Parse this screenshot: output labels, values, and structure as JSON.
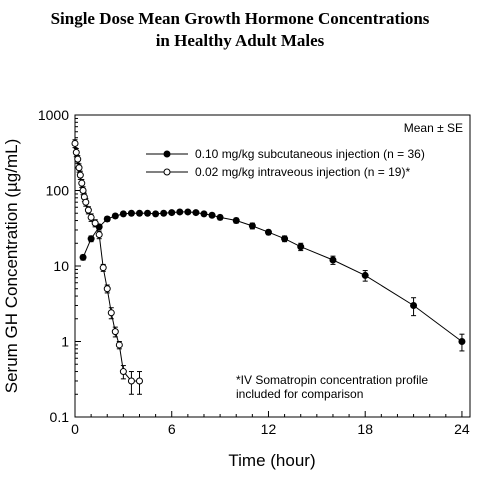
{
  "chart_data": {
    "type": "line",
    "title_line1": "Single Dose Mean Growth Hormone Concentrations",
    "title_line2": "in Healthy Adult Males",
    "xlabel": "Time (hour)",
    "ylabel": "Serum GH Concentration (µg/mL)",
    "xlim": [
      0,
      24.5
    ],
    "ylim": [
      0.1,
      1000
    ],
    "yscale": "log",
    "x_ticks": [
      0,
      6,
      12,
      18,
      24
    ],
    "y_ticks": [
      {
        "value": 0.1,
        "label": "0.1"
      },
      {
        "value": 1,
        "label": "1"
      },
      {
        "value": 10,
        "label": "10"
      },
      {
        "value": 100,
        "label": "100"
      },
      {
        "value": 1000,
        "label": "1000"
      }
    ],
    "legend_header": "Mean ± SE",
    "legend_position": "top-right",
    "annotation": [
      "*IV Somatropin concentration profile",
      "included for comparison"
    ],
    "series": [
      {
        "name": "0.10 mg/kg subcutaneous injection (n = 36)",
        "marker": "filled-circle",
        "x": [
          0.5,
          1,
          1.5,
          2,
          2.5,
          3,
          3.5,
          4,
          4.5,
          5,
          5.5,
          6,
          6.5,
          7,
          7.5,
          8,
          8.5,
          9,
          10,
          11,
          12,
          13,
          14,
          16,
          18,
          21,
          24
        ],
        "y": [
          13,
          23,
          33,
          42,
          46,
          49,
          50,
          50,
          50,
          49,
          50,
          51,
          52,
          52,
          51,
          49,
          47,
          44,
          40,
          34,
          28,
          23,
          18,
          12,
          7.5,
          3,
          1
        ],
        "err": [
          1,
          2,
          2,
          3,
          3,
          3,
          3,
          3,
          3,
          3,
          3,
          3,
          3,
          3,
          3,
          3,
          3,
          3,
          3,
          3,
          2,
          2,
          2,
          1.5,
          1.2,
          0.8,
          0.25
        ]
      },
      {
        "name": "0.02 mg/kg intraveous injection (n = 19)*",
        "marker": "open-circle",
        "x": [
          0,
          0.08,
          0.17,
          0.25,
          0.33,
          0.42,
          0.5,
          0.58,
          0.67,
          0.83,
          1,
          1.25,
          1.5,
          1.75,
          2,
          2.25,
          2.5,
          2.75,
          3,
          3.5,
          4
        ],
        "y": [
          420,
          320,
          260,
          200,
          160,
          125,
          100,
          82,
          70,
          55,
          44,
          37,
          26,
          9.5,
          5,
          2.4,
          1.35,
          0.9,
          0.4,
          0.3,
          0.3
        ],
        "err": [
          50,
          40,
          30,
          25,
          20,
          15,
          12,
          10,
          8,
          6,
          5,
          4,
          3,
          1,
          0.6,
          0.4,
          0.2,
          0.1,
          0.08,
          0.1,
          0.1
        ]
      }
    ]
  }
}
